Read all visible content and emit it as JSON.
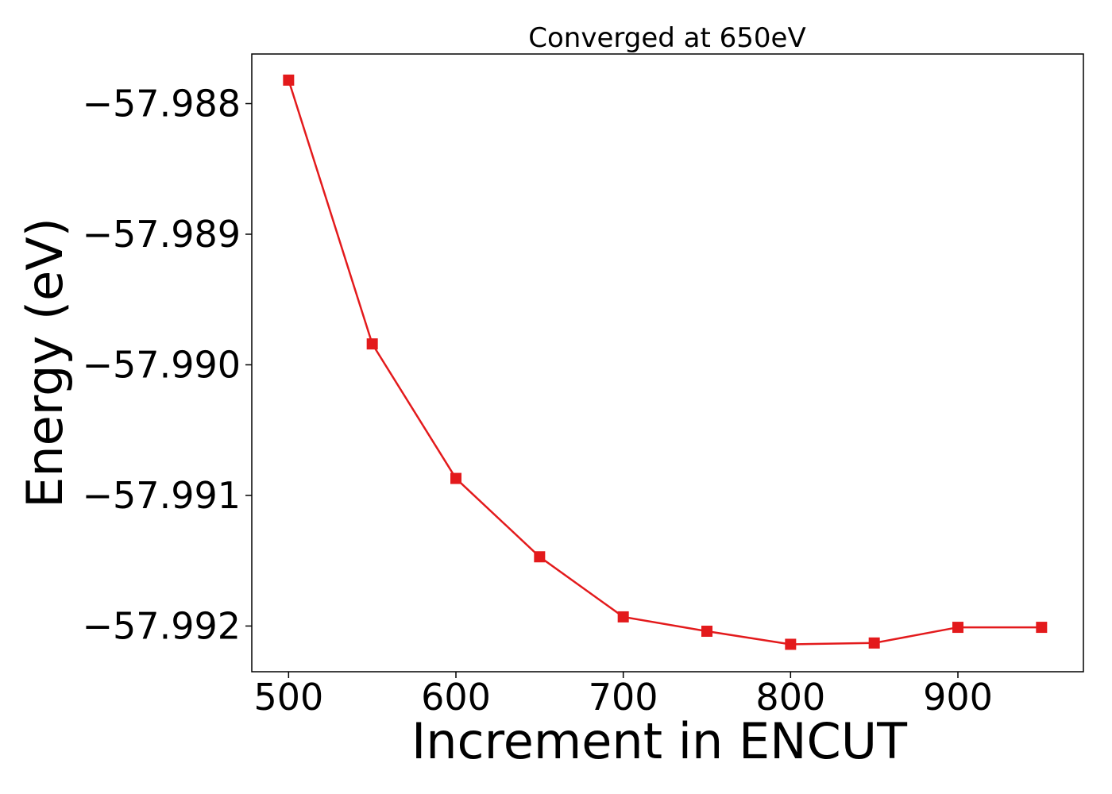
{
  "chart_data": {
    "type": "line",
    "title": "Converged at 650eV",
    "xlabel": "Increment in ENCUT",
    "ylabel": "Energy (eV)",
    "xlim": [
      478,
      975
    ],
    "ylim": [
      -57.99235,
      -57.98762
    ],
    "x_ticks": [
      500,
      600,
      700,
      800,
      900
    ],
    "x_tick_labels": [
      "500",
      "600",
      "700",
      "800",
      "900"
    ],
    "y_ticks": [
      -57.988,
      -57.989,
      -57.99,
      -57.991,
      -57.992
    ],
    "y_tick_labels": [
      "−57.988",
      "−57.989",
      "−57.990",
      "−57.991",
      "−57.992"
    ],
    "grid": false,
    "series": [
      {
        "color": "#e31a1c",
        "marker": "square",
        "x": [
          500,
          550,
          600,
          650,
          700,
          750,
          800,
          850,
          900,
          950
        ],
        "y": [
          -57.98782,
          -57.98984,
          -57.99087,
          -57.99147,
          -57.99193,
          -57.99204,
          -57.99214,
          -57.99213,
          -57.99201,
          -57.99201
        ]
      }
    ]
  }
}
